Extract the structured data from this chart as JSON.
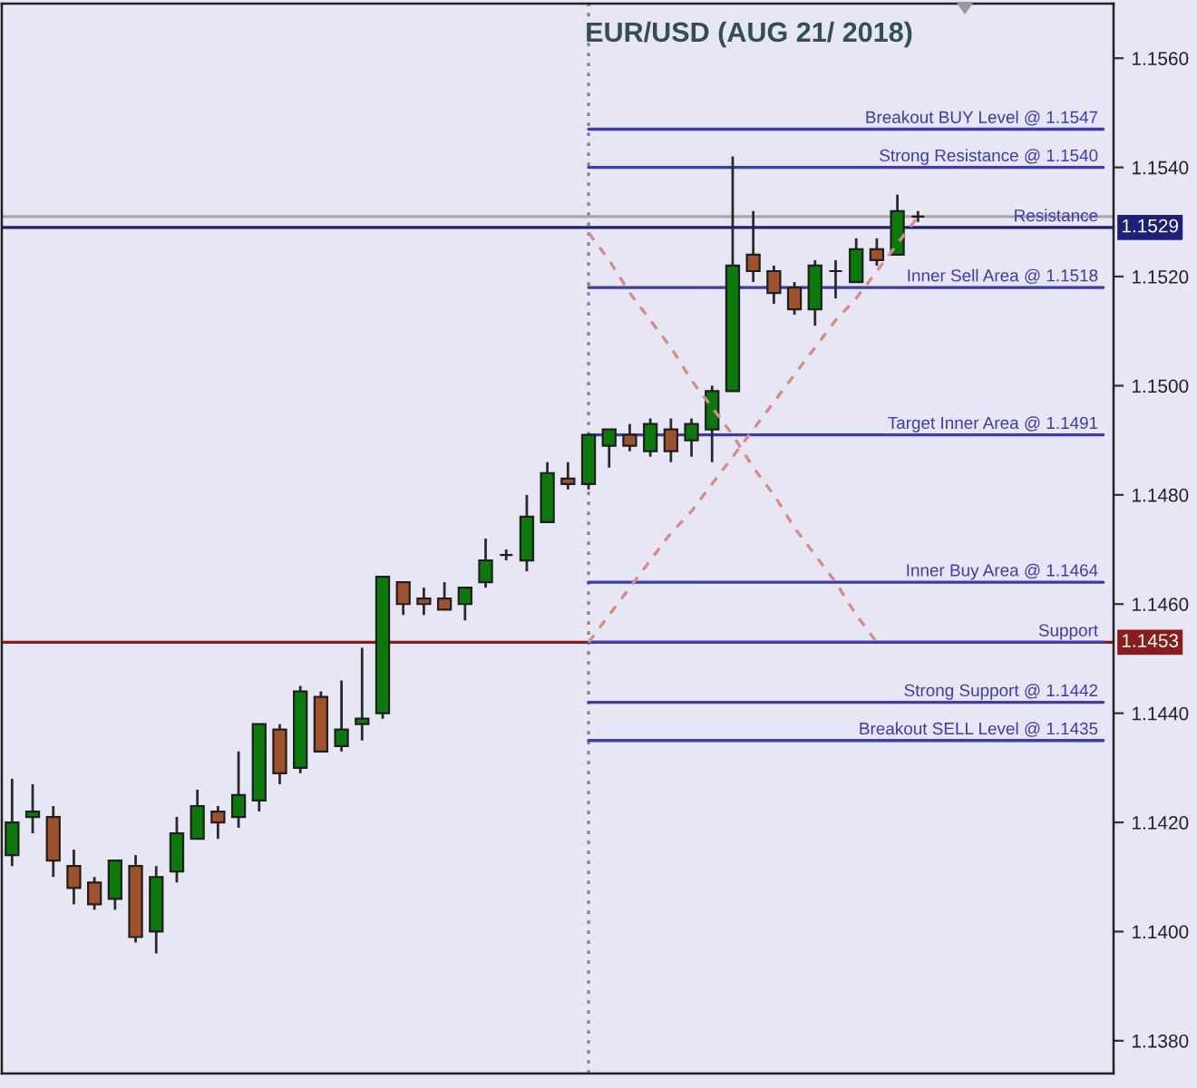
{
  "chart_data": {
    "type": "candlestick",
    "title": "EUR/USD (AUG 21/ 2018)",
    "categories": [
      null,
      null,
      null,
      null,
      null,
      null,
      null,
      null,
      null,
      null,
      null,
      null,
      null,
      null,
      null,
      null,
      null,
      null,
      null,
      null,
      null,
      null,
      null,
      null,
      null,
      null,
      null,
      null,
      null,
      null,
      null,
      null,
      null,
      null,
      null,
      null,
      null,
      null,
      null,
      null,
      null,
      null,
      null,
      null,
      null,
      null,
      null,
      null,
      null,
      null,
      null,
      null,
      null,
      null
    ],
    "ohlc": [
      [
        1.1414,
        1.1428,
        1.1412,
        1.142
      ],
      [
        1.1421,
        1.1427,
        1.1418,
        1.1422
      ],
      [
        1.1421,
        1.1423,
        1.141,
        1.1413
      ],
      [
        1.1412,
        1.1415,
        1.1405,
        1.1408
      ],
      [
        1.1409,
        1.141,
        1.1404,
        1.1405
      ],
      [
        1.1406,
        1.1413,
        1.1404,
        1.1413
      ],
      [
        1.1412,
        1.1414,
        1.1398,
        1.1399
      ],
      [
        1.14,
        1.1412,
        1.1396,
        1.141
      ],
      [
        1.1411,
        1.1421,
        1.1409,
        1.1418
      ],
      [
        1.1417,
        1.1426,
        1.1417,
        1.1423
      ],
      [
        1.1422,
        1.1423,
        1.1417,
        1.142
      ],
      [
        1.1421,
        1.1433,
        1.1419,
        1.1425
      ],
      [
        1.1424,
        1.1438,
        1.1422,
        1.1438
      ],
      [
        1.1437,
        1.1438,
        1.1427,
        1.1429
      ],
      [
        1.143,
        1.1445,
        1.1429,
        1.1444
      ],
      [
        1.1443,
        1.1444,
        1.1433,
        1.1433
      ],
      [
        1.1434,
        1.1446,
        1.1433,
        1.1437
      ],
      [
        1.1438,
        1.1452,
        1.1435,
        1.1439
      ],
      [
        1.144,
        1.1465,
        1.1439,
        1.1465
      ],
      [
        1.1464,
        1.1464,
        1.1458,
        1.146
      ],
      [
        1.1461,
        1.1463,
        1.1458,
        1.146
      ],
      [
        1.1461,
        1.1464,
        1.1459,
        1.1459
      ],
      [
        1.146,
        1.1463,
        1.1457,
        1.1463
      ],
      [
        1.1464,
        1.1472,
        1.1463,
        1.1468
      ],
      [
        1.1469,
        1.147,
        1.1468,
        1.1469
      ],
      [
        1.1468,
        1.148,
        1.1466,
        1.1476
      ],
      [
        1.1475,
        1.1486,
        1.1475,
        1.1484
      ],
      [
        1.1483,
        1.1486,
        1.1481,
        1.1482
      ],
      [
        1.1482,
        1.1491,
        1.1481,
        1.1491
      ],
      [
        1.1489,
        1.1492,
        1.1485,
        1.1492
      ],
      [
        1.1491,
        1.1493,
        1.1488,
        1.1489
      ],
      [
        1.1488,
        1.1494,
        1.1487,
        1.1493
      ],
      [
        1.1492,
        1.1494,
        1.1486,
        1.1488
      ],
      [
        1.149,
        1.1494,
        1.1487,
        1.1493
      ],
      [
        1.1492,
        1.15,
        1.1486,
        1.1499
      ],
      [
        1.1499,
        1.1542,
        1.1499,
        1.1522
      ],
      [
        1.1524,
        1.1532,
        1.1519,
        1.1521
      ],
      [
        1.1521,
        1.1522,
        1.1515,
        1.1517
      ],
      [
        1.1518,
        1.1519,
        1.1513,
        1.1514
      ],
      [
        1.1514,
        1.1523,
        1.1511,
        1.1522
      ],
      [
        1.1521,
        1.1523,
        1.1516,
        1.1521
      ],
      [
        1.1519,
        1.1527,
        1.1519,
        1.1525
      ],
      [
        1.1525,
        1.1527,
        1.1522,
        1.1523
      ],
      [
        1.1524,
        1.1535,
        1.1524,
        1.1532
      ],
      [
        1.1531,
        1.1532,
        1.153,
        1.1531
      ],
      null,
      null,
      null,
      null,
      null,
      null,
      null,
      null,
      null
    ],
    "colors": [
      "#0b7a0b",
      "#0b7a0b",
      "#a0522d",
      "#a0522d",
      "#a0522d",
      "#0b7a0b",
      "#a0522d",
      "#0b7a0b",
      "#0b7a0b",
      "#0b7a0b",
      "#a0522d",
      "#0b7a0b",
      "#0b7a0b",
      "#a0522d",
      "#0b7a0b",
      "#a0522d",
      "#0b7a0b",
      "#0b7a0b",
      "#0b7a0b",
      "#a0522d",
      "#a0522d",
      "#a0522d",
      "#0b7a0b",
      "#0b7a0b",
      "#1a1a1a",
      "#0b7a0b",
      "#0b7a0b",
      "#a0522d",
      "#0b7a0b",
      "#0b7a0b",
      "#a0522d",
      "#0b7a0b",
      "#a0522d",
      "#0b7a0b",
      "#0b7a0b",
      "#0b7a0b",
      "#a0522d",
      "#a0522d",
      "#a0522d",
      "#0b7a0b",
      "#1a1a1a",
      "#0b7a0b",
      "#a0522d",
      "#0b7a0b",
      "#1a1a1a",
      null,
      null,
      null,
      null,
      null,
      null,
      null,
      null,
      null
    ],
    "series": [
      {
        "type": "line",
        "color": "#d98a8a",
        "line_style": "dashed",
        "values": [
          null,
          null,
          null,
          null,
          null,
          null,
          null,
          null,
          null,
          null,
          null,
          null,
          null,
          null,
          null,
          null,
          null,
          null,
          null,
          null,
          null,
          null,
          null,
          null,
          null,
          null,
          null,
          null,
          1.1528,
          1.1523,
          1.1517,
          1.1512,
          1.1507,
          1.1501,
          1.1496,
          1.1491,
          1.1485,
          1.148,
          1.1474,
          1.1469,
          1.1464,
          1.1458,
          1.1453,
          null,
          null,
          null,
          null,
          null,
          null,
          null,
          null,
          null,
          null,
          null
        ]
      },
      {
        "type": "line",
        "color": "#d98a8a",
        "line_style": "dashed",
        "values": [
          null,
          null,
          null,
          null,
          null,
          null,
          null,
          null,
          null,
          null,
          null,
          null,
          null,
          null,
          null,
          null,
          null,
          null,
          null,
          null,
          null,
          null,
          null,
          null,
          null,
          null,
          null,
          null,
          1.1453,
          1.1458,
          1.1463,
          1.1468,
          1.1473,
          1.1477,
          1.1482,
          1.1487,
          1.1492,
          1.1497,
          1.1502,
          1.1507,
          1.1512,
          1.1516,
          1.1521,
          1.1526,
          1.1531,
          null,
          null,
          null,
          null,
          null,
          null,
          null,
          null,
          null
        ]
      },
      {
        "type": "line",
        "name": "Breakout BUY Level @ 1.1547",
        "color": "#3b3bb3",
        "line_style": "solid",
        "values": [
          null,
          null,
          null,
          null,
          null,
          null,
          null,
          null,
          null,
          null,
          null,
          null,
          null,
          null,
          null,
          null,
          null,
          null,
          null,
          null,
          null,
          null,
          null,
          null,
          null,
          null,
          null,
          null,
          1.1547,
          1.1547,
          1.1547,
          1.1547,
          1.1547,
          1.1547,
          1.1547,
          1.1547,
          1.1547,
          1.1547,
          1.1547,
          1.1547,
          1.1547,
          1.1547,
          1.1547,
          1.1547,
          1.1547,
          1.1547,
          1.1547,
          1.1547,
          1.1547,
          1.1547,
          1.1547,
          1.1547,
          1.1547,
          1.1547
        ]
      },
      {
        "type": "line",
        "name": "Strong Resistance @ 1.1540",
        "color": "#3b3bb3",
        "line_style": "solid",
        "values": [
          null,
          null,
          null,
          null,
          null,
          null,
          null,
          null,
          null,
          null,
          null,
          null,
          null,
          null,
          null,
          null,
          null,
          null,
          null,
          null,
          null,
          null,
          null,
          null,
          null,
          null,
          null,
          null,
          1.154,
          1.154,
          1.154,
          1.154,
          1.154,
          1.154,
          1.154,
          1.154,
          1.154,
          1.154,
          1.154,
          1.154,
          1.154,
          1.154,
          1.154,
          1.154,
          1.154,
          1.154,
          1.154,
          1.154,
          1.154,
          1.154,
          1.154,
          1.154,
          1.154,
          1.154
        ]
      },
      {
        "type": "line",
        "name": "Inner Sell Area @ 1.1518",
        "color": "#3b3bb3",
        "line_style": "solid",
        "values": [
          null,
          null,
          null,
          null,
          null,
          null,
          null,
          null,
          null,
          null,
          null,
          null,
          null,
          null,
          null,
          null,
          null,
          null,
          null,
          null,
          null,
          null,
          null,
          null,
          null,
          null,
          null,
          null,
          1.1518,
          1.1518,
          1.1518,
          1.1518,
          1.1518,
          1.1518,
          1.1518,
          1.1518,
          1.1518,
          1.1518,
          1.1518,
          1.1518,
          1.1518,
          1.1518,
          1.1518,
          1.1518,
          1.1518,
          1.1518,
          1.1518,
          1.1518,
          1.1518,
          1.1518,
          1.1518,
          1.1518,
          1.1518,
          1.1518
        ]
      },
      {
        "type": "line",
        "name": "Target Inner Area @ 1.1491",
        "color": "#3b3bb3",
        "line_style": "solid",
        "values": [
          null,
          null,
          null,
          null,
          null,
          null,
          null,
          null,
          null,
          null,
          null,
          null,
          null,
          null,
          null,
          null,
          null,
          null,
          null,
          null,
          null,
          null,
          null,
          null,
          null,
          null,
          null,
          null,
          1.1491,
          1.1491,
          1.1491,
          1.1491,
          1.1491,
          1.1491,
          1.1491,
          1.1491,
          1.1491,
          1.1491,
          1.1491,
          1.1491,
          1.1491,
          1.1491,
          1.1491,
          1.1491,
          1.1491,
          1.1491,
          1.1491,
          1.1491,
          1.1491,
          1.1491,
          1.1491,
          1.1491,
          1.1491,
          1.1491
        ]
      },
      {
        "type": "line",
        "name": "Inner Buy Area @ 1.1464",
        "color": "#3b3bb3",
        "line_style": "solid",
        "values": [
          null,
          null,
          null,
          null,
          null,
          null,
          null,
          null,
          null,
          null,
          null,
          null,
          null,
          null,
          null,
          null,
          null,
          null,
          null,
          null,
          null,
          null,
          null,
          null,
          null,
          null,
          null,
          null,
          1.1464,
          1.1464,
          1.1464,
          1.1464,
          1.1464,
          1.1464,
          1.1464,
          1.1464,
          1.1464,
          1.1464,
          1.1464,
          1.1464,
          1.1464,
          1.1464,
          1.1464,
          1.1464,
          1.1464,
          1.1464,
          1.1464,
          1.1464,
          1.1464,
          1.1464,
          1.1464,
          1.1464,
          1.1464,
          1.1464
        ]
      },
      {
        "type": "line",
        "name": "Support",
        "color": "#3b3bb3",
        "line_style": "solid",
        "values": [
          null,
          null,
          null,
          null,
          null,
          null,
          null,
          null,
          null,
          null,
          null,
          null,
          null,
          null,
          null,
          null,
          null,
          null,
          null,
          null,
          null,
          null,
          null,
          null,
          null,
          null,
          null,
          null,
          1.1453,
          1.1453,
          1.1453,
          1.1453,
          1.1453,
          1.1453,
          1.1453,
          1.1453,
          1.1453,
          1.1453,
          1.1453,
          1.1453,
          1.1453,
          1.1453,
          1.1453,
          1.1453,
          1.1453,
          1.1453,
          1.1453,
          1.1453,
          1.1453,
          1.1453,
          1.1453,
          1.1453,
          1.1453,
          1.1453
        ]
      },
      {
        "type": "line",
        "name": "Strong Support @ 1.1442",
        "color": "#3b3bb3",
        "line_style": "solid",
        "values": [
          null,
          null,
          null,
          null,
          null,
          null,
          null,
          null,
          null,
          null,
          null,
          null,
          null,
          null,
          null,
          null,
          null,
          null,
          null,
          null,
          null,
          null,
          null,
          null,
          null,
          null,
          null,
          null,
          1.1442,
          1.1442,
          1.1442,
          1.1442,
          1.1442,
          1.1442,
          1.1442,
          1.1442,
          1.1442,
          1.1442,
          1.1442,
          1.1442,
          1.1442,
          1.1442,
          1.1442,
          1.1442,
          1.1442,
          1.1442,
          1.1442,
          1.1442,
          1.1442,
          1.1442,
          1.1442,
          1.1442,
          1.1442,
          1.1442
        ]
      },
      {
        "type": "line",
        "name": "Breakout SELL Level @ 1.1435",
        "color": "#3b3bb3",
        "line_style": "solid",
        "values": [
          null,
          null,
          null,
          null,
          null,
          null,
          null,
          null,
          null,
          null,
          null,
          null,
          null,
          null,
          null,
          null,
          null,
          null,
          null,
          null,
          null,
          null,
          null,
          null,
          null,
          null,
          null,
          null,
          1.1435,
          1.1435,
          1.1435,
          1.1435,
          1.1435,
          1.1435,
          1.1435,
          1.1435,
          1.1435,
          1.1435,
          1.1435,
          1.1435,
          1.1435,
          1.1435,
          1.1435,
          1.1435,
          1.1435,
          1.1435,
          1.1435,
          1.1435,
          1.1435,
          1.1435,
          1.1435,
          1.1435,
          1.1435,
          1.1435
        ]
      }
    ],
    "ref_lines": [
      {
        "axis": "y",
        "value": 1.1531,
        "color": "#a8a8a8",
        "line_style": "solid"
      },
      {
        "axis": "y",
        "value": 1.1529,
        "label": "Resistance",
        "color": "#1f1f78",
        "line_style": "solid"
      },
      {
        "axis": "y",
        "value": 1.1453,
        "color": "#8b1c1c",
        "line_style": "solid"
      }
    ],
    "annotations": [
      {
        "text": "1.1529",
        "y": 1.1529
      },
      {
        "text": "1.1453",
        "y": 1.1453
      }
    ],
    "ylim": [
      1.1374,
      1.157
    ],
    "yticks": [
      {
        "value": 1.138,
        "label": "1.1380"
      },
      {
        "value": 1.14,
        "label": "1.1400"
      },
      {
        "value": 1.142,
        "label": "1.1420"
      },
      {
        "value": 1.144,
        "label": "1.1440"
      },
      {
        "value": 1.146,
        "label": "1.1460"
      },
      {
        "value": 1.148,
        "label": "1.1480"
      },
      {
        "value": 1.15,
        "label": "1.1500"
      },
      {
        "value": 1.152,
        "label": "1.1520"
      },
      {
        "value": 1.154,
        "label": "1.1540"
      },
      {
        "value": 1.156,
        "label": "1.1560"
      }
    ],
    "tick_labels": "y"
  }
}
